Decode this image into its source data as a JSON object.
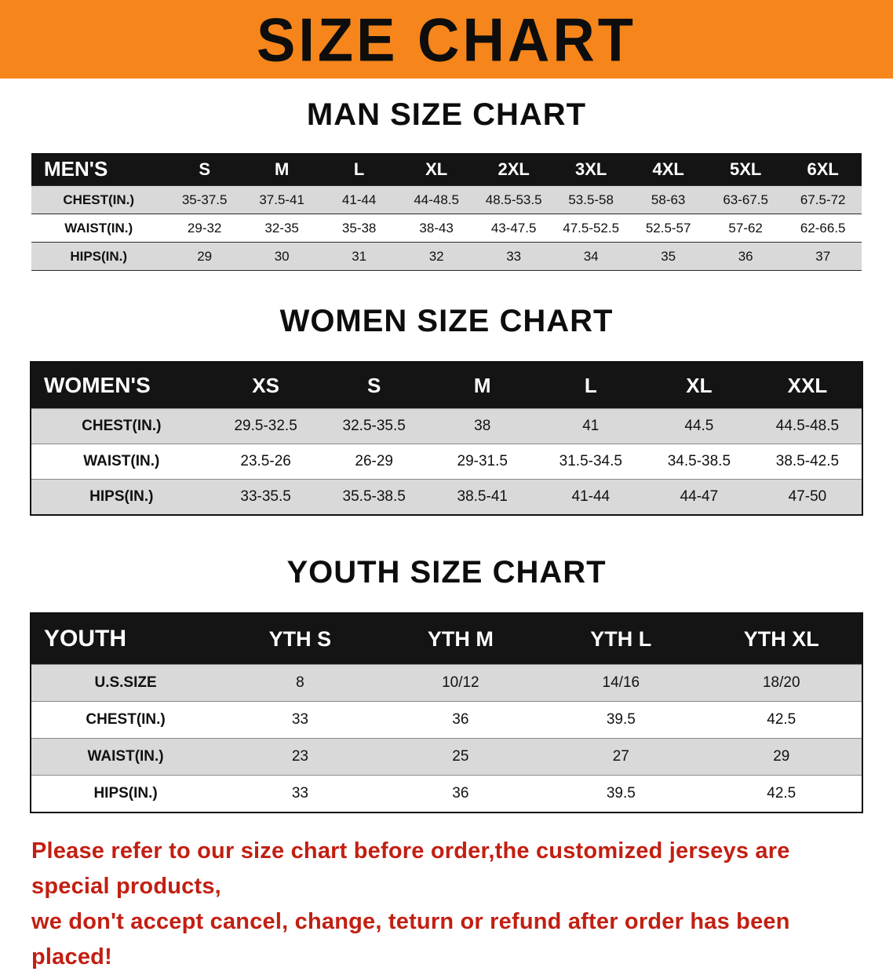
{
  "banner": {
    "title": "SIZE CHART"
  },
  "colors": {
    "banner_orange": "#f6851b",
    "table_header_black": "#141414",
    "row_shade_gray": "#d9d9d9",
    "notice_red": "#c21f12"
  },
  "sections": [
    {
      "heading": "MAN SIZE CHART",
      "header": [
        "MEN'S",
        "S",
        "M",
        "L",
        "XL",
        "2XL",
        "3XL",
        "4XL",
        "5XL",
        "6XL"
      ],
      "rows": [
        [
          "CHEST(IN.)",
          "35-37.5",
          "37.5-41",
          "41-44",
          "44-48.5",
          "48.5-53.5",
          "53.5-58",
          "58-63",
          "63-67.5",
          "67.5-72"
        ],
        [
          "WAIST(IN.)",
          "29-32",
          "32-35",
          "35-38",
          "38-43",
          "43-47.5",
          "47.5-52.5",
          "52.5-57",
          "57-62",
          "62-66.5"
        ],
        [
          "HIPS(IN.)",
          "29",
          "30",
          "31",
          "32",
          "33",
          "34",
          "35",
          "36",
          "37"
        ]
      ]
    },
    {
      "heading": "WOMEN SIZE CHART",
      "header": [
        "WOMEN'S",
        "XS",
        "S",
        "M",
        "L",
        "XL",
        "XXL"
      ],
      "rows": [
        [
          "CHEST(IN.)",
          "29.5-32.5",
          "32.5-35.5",
          "38",
          "41",
          "44.5",
          "44.5-48.5"
        ],
        [
          "WAIST(IN.)",
          "23.5-26",
          "26-29",
          "29-31.5",
          "31.5-34.5",
          "34.5-38.5",
          "38.5-42.5"
        ],
        [
          "HIPS(IN.)",
          "33-35.5",
          "35.5-38.5",
          "38.5-41",
          "41-44",
          "44-47",
          "47-50"
        ]
      ]
    },
    {
      "heading": "YOUTH SIZE CHART",
      "header": [
        "YOUTH",
        "YTH S",
        "YTH M",
        "YTH L",
        "YTH XL"
      ],
      "rows": [
        [
          "U.S.SIZE",
          "8",
          "10/12",
          "14/16",
          "18/20"
        ],
        [
          "CHEST(IN.)",
          "33",
          "36",
          "39.5",
          "42.5"
        ],
        [
          "WAIST(IN.)",
          "23",
          "25",
          "27",
          "29"
        ],
        [
          "HIPS(IN.)",
          "33",
          "36",
          "39.5",
          "42.5"
        ]
      ]
    }
  ],
  "footer": {
    "line1": "Please refer to our size chart before order,the customized jerseys are special products,",
    "line2": "we don't accept cancel, change, teturn or refund after order has been placed!"
  }
}
